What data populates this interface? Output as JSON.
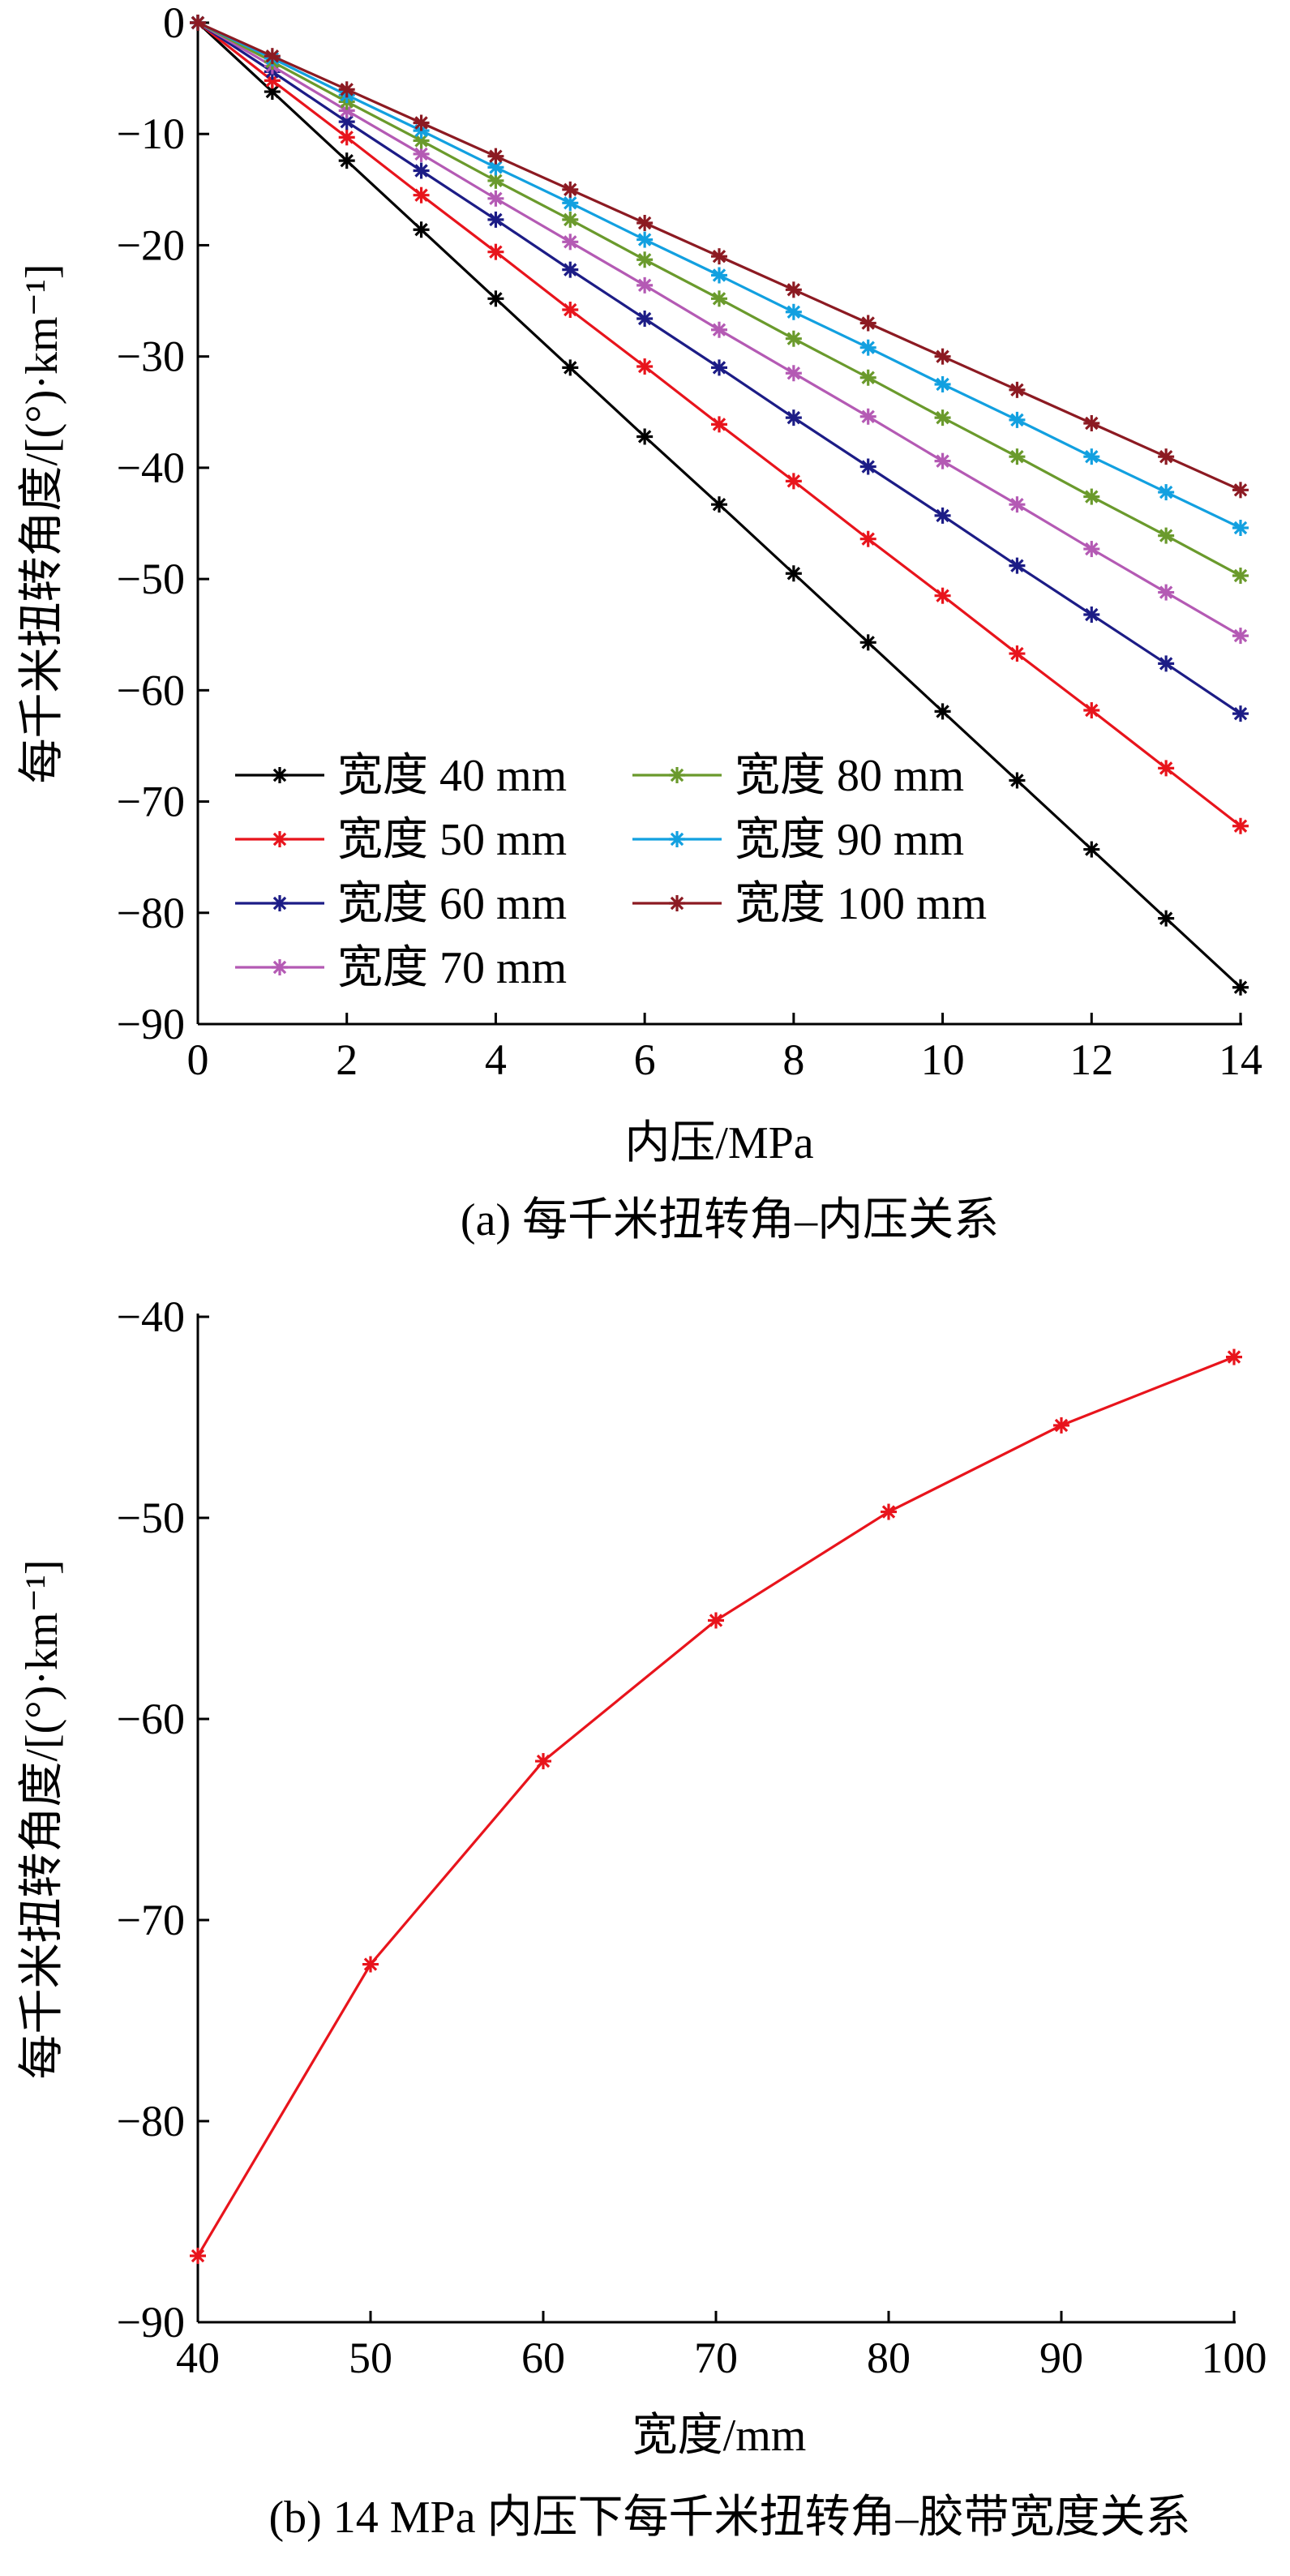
{
  "chart_data": [
    {
      "type": "line",
      "caption": "(a)  每千米扭转角–内压关系",
      "xlabel": "内压/MPa",
      "ylabel": "每千米扭转角度/[(°)·km⁻¹]",
      "xlim": [
        0,
        14
      ],
      "ylim": [
        -90,
        0
      ],
      "x_ticks": [
        0,
        2,
        4,
        6,
        8,
        10,
        12,
        14
      ],
      "y_ticks": [
        0,
        -10,
        -20,
        -30,
        -40,
        -50,
        -60,
        -70,
        -80,
        -90
      ],
      "x_tick_labels": [
        "0",
        "2",
        "4",
        "6",
        "8",
        "10",
        "12",
        "14"
      ],
      "y_tick_labels": [
        "0",
        "−10",
        "−20",
        "−30",
        "−40",
        "−50",
        "−60",
        "−70",
        "−80",
        "−90"
      ],
      "grid": false,
      "legend_position": "lower-left",
      "marker": "asterisk",
      "x": [
        0,
        1,
        2,
        3,
        4,
        5,
        6,
        7,
        8,
        9,
        10,
        11,
        12,
        13,
        14
      ],
      "series": [
        {
          "name": "宽度 40 mm",
          "color": "#000000",
          "values": [
            0,
            -6.2,
            -12.4,
            -18.6,
            -24.8,
            -31.0,
            -37.2,
            -43.3,
            -49.5,
            -55.7,
            -61.9,
            -68.1,
            -74.3,
            -80.5,
            -86.7
          ]
        },
        {
          "name": "宽度 50 mm",
          "color": "#e8141c",
          "values": [
            0,
            -5.2,
            -10.3,
            -15.5,
            -20.6,
            -25.8,
            -30.9,
            -36.1,
            -41.2,
            -46.4,
            -51.5,
            -56.7,
            -61.8,
            -67.0,
            -72.2
          ]
        },
        {
          "name": "宽度 60 mm",
          "color": "#1c1c86",
          "values": [
            0,
            -4.4,
            -8.9,
            -13.3,
            -17.7,
            -22.2,
            -26.6,
            -31.0,
            -35.5,
            -39.9,
            -44.3,
            -48.8,
            -53.2,
            -57.6,
            -62.1
          ]
        },
        {
          "name": "宽度 70 mm",
          "color": "#b45ab4",
          "values": [
            0,
            -3.9,
            -7.9,
            -11.8,
            -15.8,
            -19.7,
            -23.6,
            -27.6,
            -31.5,
            -35.4,
            -39.4,
            -43.3,
            -47.3,
            -51.2,
            -55.1
          ]
        },
        {
          "name": "宽度 80 mm",
          "color": "#6a9a2c",
          "values": [
            0,
            -3.5,
            -7.1,
            -10.6,
            -14.2,
            -17.7,
            -21.3,
            -24.8,
            -28.4,
            -31.9,
            -35.5,
            -39.0,
            -42.6,
            -46.1,
            -49.7
          ]
        },
        {
          "name": "宽度 90 mm",
          "color": "#12a0e0",
          "values": [
            0,
            -3.2,
            -6.5,
            -9.7,
            -13.0,
            -16.2,
            -19.5,
            -22.7,
            -26.0,
            -29.2,
            -32.5,
            -35.7,
            -39.0,
            -42.2,
            -45.4
          ]
        },
        {
          "name": "宽度 100 mm",
          "color": "#8c1a22",
          "values": [
            0,
            -3.0,
            -6.0,
            -9.0,
            -12.0,
            -15.0,
            -18.0,
            -21.0,
            -24.0,
            -27.0,
            -30.0,
            -33.0,
            -36.0,
            -39.0,
            -42.0
          ]
        }
      ]
    },
    {
      "type": "line",
      "caption": "(b)  14 MPa 内压下每千米扭转角–胶带宽度关系",
      "xlabel": "宽度/mm",
      "ylabel": "每千米扭转角度/[(°)·km⁻¹]",
      "xlim": [
        40,
        100
      ],
      "ylim": [
        -90,
        -40
      ],
      "x_ticks": [
        40,
        50,
        60,
        70,
        80,
        90,
        100
      ],
      "y_ticks": [
        -40,
        -50,
        -60,
        -70,
        -80,
        -90
      ],
      "x_tick_labels": [
        "40",
        "50",
        "60",
        "70",
        "80",
        "90",
        "100"
      ],
      "y_tick_labels": [
        "−40",
        "−50",
        "−60",
        "−70",
        "−80",
        "−90"
      ],
      "grid": false,
      "marker": "asterisk",
      "x": [
        40,
        50,
        60,
        70,
        80,
        90,
        100
      ],
      "series": [
        {
          "color": "#e8141c",
          "values": [
            -86.7,
            -72.2,
            -62.1,
            -55.1,
            -49.7,
            -45.4,
            -42.0
          ]
        }
      ]
    }
  ]
}
